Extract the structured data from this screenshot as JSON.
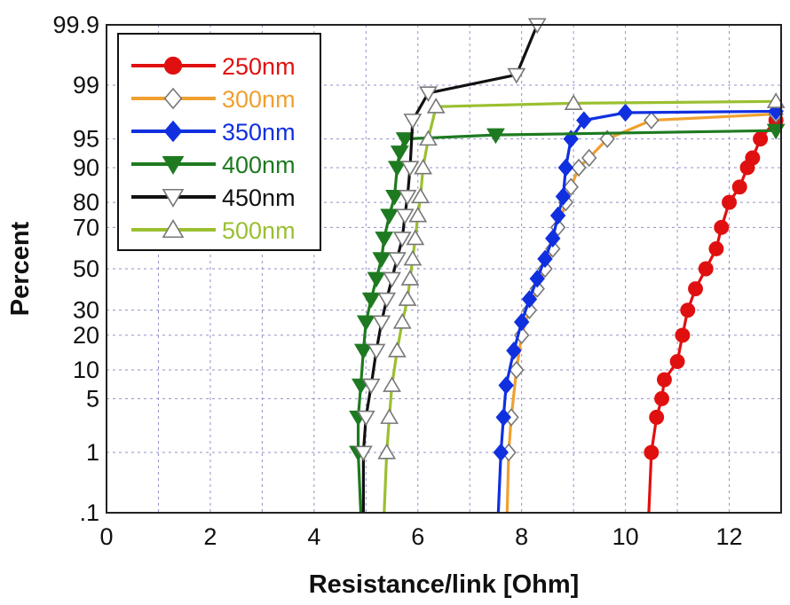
{
  "chart_data": {
    "type": "scatter",
    "title": "",
    "xlabel": "Resistance/link [Ohm]",
    "ylabel": "Percent",
    "xlim": [
      0,
      13
    ],
    "x_ticks": [
      0,
      2,
      4,
      6,
      8,
      10,
      12
    ],
    "y_scale": "normal-probability",
    "y_ticks": [
      0.1,
      1,
      5,
      10,
      20,
      30,
      50,
      70,
      80,
      90,
      95,
      99,
      99.9
    ],
    "y_tick_labels": [
      ".1",
      "1",
      "5",
      "10",
      "20",
      "30",
      "50",
      "70",
      "80",
      "90",
      "95",
      "99",
      "99.9"
    ],
    "grid": true,
    "legend_position": "top-left",
    "series": [
      {
        "name": "250nm",
        "color": "#e01010",
        "marker": "circle",
        "filled": true,
        "x": [
          10.45,
          10.5,
          10.6,
          10.7,
          10.75,
          11.0,
          11.1,
          11.2,
          11.35,
          11.55,
          11.75,
          11.85,
          12.0,
          12.2,
          12.35,
          12.45,
          12.6,
          12.9
        ],
        "y": [
          0.1,
          1,
          3,
          5,
          8,
          12,
          20,
          30,
          40,
          50,
          60,
          70,
          80,
          85,
          90,
          92,
          95,
          97
        ]
      },
      {
        "name": "300nm",
        "color": "#f0a030",
        "marker": "diamond",
        "filled": false,
        "x": [
          7.72,
          7.75,
          7.8,
          7.9,
          8.0,
          8.15,
          8.3,
          8.45,
          8.6,
          8.7,
          8.85,
          8.95,
          9.1,
          9.3,
          9.65,
          10.5,
          12.9
        ],
        "y": [
          0.1,
          1,
          3,
          10,
          20,
          30,
          40,
          50,
          60,
          70,
          80,
          85,
          90,
          92,
          95,
          97,
          97.5
        ]
      },
      {
        "name": "350nm",
        "color": "#1030e0",
        "marker": "diamond",
        "filled": true,
        "x": [
          7.55,
          7.6,
          7.65,
          7.7,
          7.85,
          8.0,
          8.15,
          8.3,
          8.45,
          8.6,
          8.7,
          8.8,
          8.85,
          8.95,
          9.2,
          10.0,
          12.9
        ],
        "y": [
          0.1,
          1,
          3,
          7,
          15,
          25,
          35,
          45,
          55,
          65,
          75,
          82,
          90,
          95,
          97,
          97.6,
          97.7
        ]
      },
      {
        "name": "400nm",
        "color": "#1e7a20",
        "marker": "triangle-down",
        "filled": true,
        "x": [
          4.9,
          4.85,
          4.85,
          4.9,
          4.95,
          5.0,
          5.1,
          5.2,
          5.3,
          5.35,
          5.45,
          5.55,
          5.6,
          5.65,
          5.75,
          7.5,
          12.9
        ],
        "y": [
          0.1,
          1,
          3,
          7,
          15,
          25,
          35,
          45,
          55,
          65,
          75,
          82,
          90,
          93,
          95,
          95.5,
          96
        ]
      },
      {
        "name": "450nm",
        "color": "#111111",
        "marker": "triangle-down",
        "filled": false,
        "x": [
          4.95,
          4.95,
          5.0,
          5.1,
          5.2,
          5.3,
          5.4,
          5.5,
          5.6,
          5.7,
          5.75,
          5.8,
          5.85,
          5.9,
          6.2,
          7.9,
          8.3
        ],
        "y": [
          0.1,
          1,
          3,
          7,
          15,
          25,
          35,
          45,
          55,
          65,
          75,
          82,
          90,
          97,
          98.7,
          99.3,
          99.9
        ]
      },
      {
        "name": "500nm",
        "color": "#9ac030",
        "marker": "triangle-up",
        "filled": false,
        "x": [
          5.35,
          5.4,
          5.45,
          5.5,
          5.6,
          5.7,
          5.8,
          5.85,
          5.9,
          5.95,
          6.0,
          6.05,
          6.1,
          6.2,
          6.35,
          9.0,
          12.9
        ],
        "y": [
          0.1,
          1,
          3,
          7,
          15,
          25,
          35,
          45,
          55,
          65,
          75,
          82,
          90,
          95,
          98,
          98.2,
          98.3
        ]
      }
    ]
  }
}
